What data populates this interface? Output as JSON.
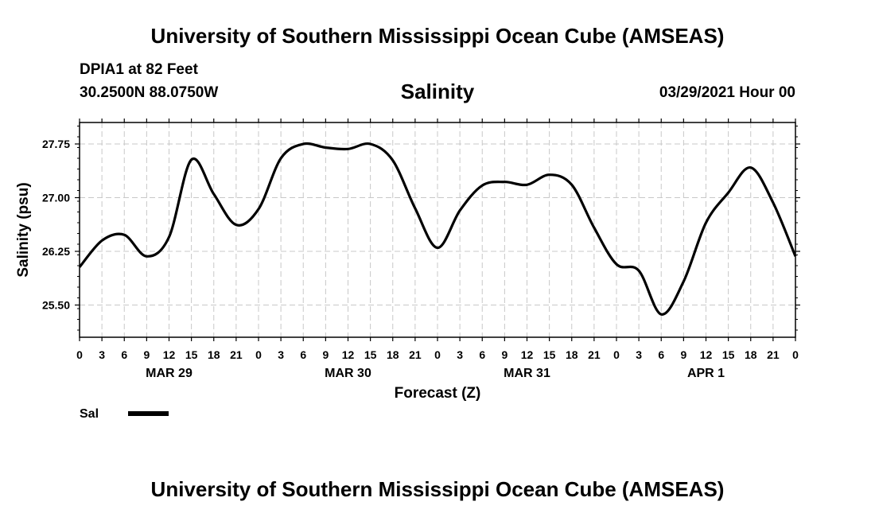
{
  "header": {
    "title": "University of Southern Mississippi Ocean Cube (AMSEAS)",
    "station": "DPIA1 at 82 Feet",
    "coords": "30.2500N  88.0750W",
    "chart_title": "Salinity",
    "date": "03/29/2021 Hour 00"
  },
  "footer": {
    "title": "University of Southern Mississippi Ocean Cube (AMSEAS)"
  },
  "chart_data": {
    "type": "line",
    "title": "Salinity",
    "xlabel": "Forecast (Z)",
    "ylabel": "Salinity (psu)",
    "xlim": [
      0,
      96
    ],
    "ylim": [
      25.05,
      28.05
    ],
    "grid": true,
    "y_ticks": [
      25.5,
      26.25,
      27.0,
      27.75
    ],
    "y_tick_labels": [
      "25.50",
      "26.25",
      "27.00",
      "27.75"
    ],
    "x_ticks": [
      0,
      3,
      6,
      9,
      12,
      15,
      18,
      21,
      24,
      27,
      30,
      33,
      36,
      39,
      42,
      45,
      48,
      51,
      54,
      57,
      60,
      63,
      66,
      69,
      72,
      75,
      78,
      81,
      84,
      87,
      90,
      93,
      96
    ],
    "x_tick_labels": [
      "0",
      "3",
      "6",
      "9",
      "12",
      "15",
      "18",
      "21",
      "0",
      "3",
      "6",
      "9",
      "12",
      "15",
      "18",
      "21",
      "0",
      "3",
      "6",
      "9",
      "12",
      "15",
      "18",
      "21",
      "0",
      "3",
      "6",
      "9",
      "12",
      "15",
      "18",
      "21",
      "0"
    ],
    "day_labels": [
      {
        "hour": 12,
        "label": "MAR 29"
      },
      {
        "hour": 36,
        "label": "MAR 30"
      },
      {
        "hour": 60,
        "label": "MAR 31"
      },
      {
        "hour": 84,
        "label": "APR 1"
      }
    ],
    "legend": "bottom-left",
    "series": [
      {
        "name": "Sal",
        "color": "#000000",
        "x": [
          0,
          3,
          6,
          9,
          12,
          15,
          18,
          21,
          24,
          27,
          30,
          33,
          36,
          39,
          42,
          45,
          48,
          51,
          54,
          57,
          60,
          63,
          66,
          69,
          72,
          75,
          78,
          81,
          84,
          87,
          90,
          93,
          96
        ],
        "values": [
          26.03,
          26.4,
          26.48,
          26.18,
          26.45,
          27.53,
          27.05,
          26.62,
          26.84,
          27.55,
          27.75,
          27.7,
          27.68,
          27.75,
          27.52,
          26.85,
          26.3,
          26.82,
          27.17,
          27.22,
          27.18,
          27.32,
          27.18,
          26.58,
          26.07,
          25.98,
          25.37,
          25.83,
          26.65,
          27.07,
          27.42,
          26.93,
          26.18
        ]
      }
    ]
  }
}
